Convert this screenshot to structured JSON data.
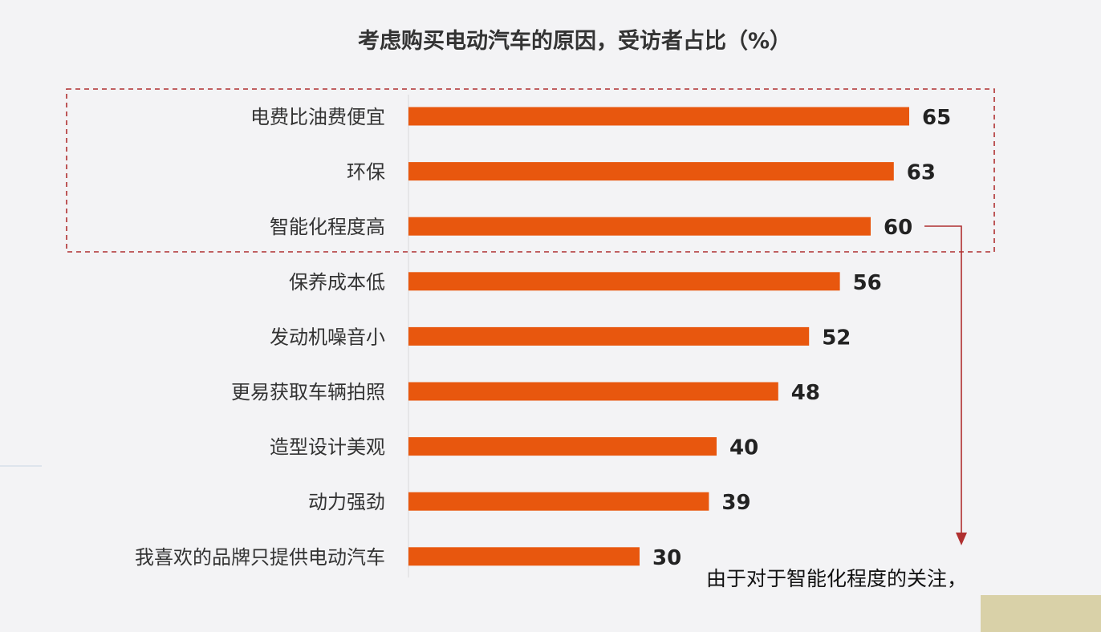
{
  "chart_data": {
    "type": "bar",
    "orientation": "horizontal",
    "title": "考虑购买电动汽车的原因，受访者占比（%）",
    "categories": [
      "电费比油费便宜",
      "环保",
      "智能化程度高",
      "保养成本低",
      "发动机噪音小",
      "更易获取车辆拍照",
      "造型设计美观",
      "动力强劲",
      "我喜欢的品牌只提供电动汽车"
    ],
    "values": [
      65,
      63,
      60,
      56,
      52,
      48,
      40,
      39,
      30
    ],
    "xlim": [
      0,
      70
    ],
    "grid": false,
    "legend": "none",
    "highlight": {
      "categories": [
        "电费比油费便宜",
        "环保",
        "智能化程度高"
      ],
      "style": "dashed-box"
    },
    "annotation": {
      "text": "由于对于智能化程度的关注，",
      "points_to": "智能化程度高"
    },
    "colors": {
      "bar": "#e8570e",
      "highlight_box": "#b03030",
      "arrow": "#b03030",
      "background": "#f3f3f5"
    }
  }
}
